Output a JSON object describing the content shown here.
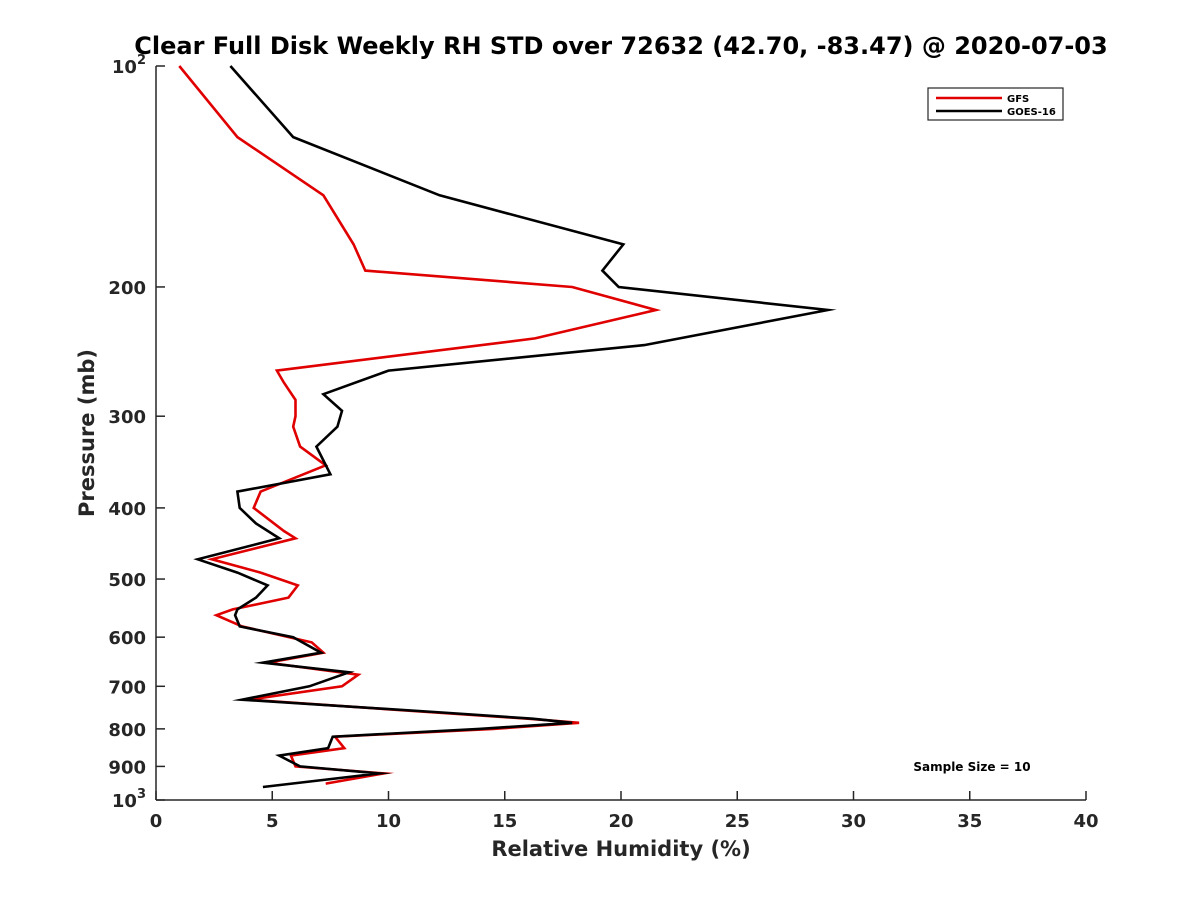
{
  "chart_data": {
    "type": "line",
    "title": "Clear Full Disk Weekly RH STD over 72632 (42.70, -83.47) @ 2020-07-03",
    "xlabel": "Relative Humidity (%)",
    "ylabel": "Pressure (mb)",
    "xlim": [
      0,
      40
    ],
    "ylim": [
      100,
      1000
    ],
    "y_scale": "log",
    "y_reversed": true,
    "grid": false,
    "legend_position": "top-right",
    "x_ticks": [
      "0",
      "5",
      "10",
      "15",
      "20",
      "25",
      "30",
      "35",
      "40"
    ],
    "y_ticks": [
      {
        "value": 100,
        "base": "10",
        "exp": "2"
      },
      {
        "value": 200,
        "label": "200"
      },
      {
        "value": 300,
        "label": "300"
      },
      {
        "value": 400,
        "label": "400"
      },
      {
        "value": 500,
        "label": "500"
      },
      {
        "value": 600,
        "label": "600"
      },
      {
        "value": 700,
        "label": "700"
      },
      {
        "value": 800,
        "label": "800"
      },
      {
        "value": 900,
        "label": "900"
      },
      {
        "value": 1000,
        "base": "10",
        "exp": "3"
      }
    ],
    "annotation": "Sample Size = 10",
    "series": [
      {
        "name": "GFS",
        "color": "#e00000",
        "points": [
          [
            1.0,
            100
          ],
          [
            3.5,
            125
          ],
          [
            7.2,
            150
          ],
          [
            8.5,
            175
          ],
          [
            9.0,
            190
          ],
          [
            17.9,
            200
          ],
          [
            21.5,
            215
          ],
          [
            16.3,
            235
          ],
          [
            5.2,
            260
          ],
          [
            5.5,
            270
          ],
          [
            6.0,
            285
          ],
          [
            6.0,
            300
          ],
          [
            5.9,
            310
          ],
          [
            6.2,
            330
          ],
          [
            7.3,
            350
          ],
          [
            4.5,
            380
          ],
          [
            4.2,
            400
          ],
          [
            5.5,
            430
          ],
          [
            6.0,
            440
          ],
          [
            2.4,
            470
          ],
          [
            4.5,
            490
          ],
          [
            6.1,
            510
          ],
          [
            5.7,
            530
          ],
          [
            3.3,
            550
          ],
          [
            2.6,
            560
          ],
          [
            3.7,
            580
          ],
          [
            6.7,
            610
          ],
          [
            7.2,
            630
          ],
          [
            4.8,
            650
          ],
          [
            8.7,
            675
          ],
          [
            8.0,
            700
          ],
          [
            4.0,
            730
          ],
          [
            12.0,
            760
          ],
          [
            16.0,
            775
          ],
          [
            18.2,
            785
          ],
          [
            14.5,
            800
          ],
          [
            7.7,
            820
          ],
          [
            8.1,
            850
          ],
          [
            5.8,
            870
          ],
          [
            6.0,
            900
          ],
          [
            9.8,
            920
          ],
          [
            7.3,
            950
          ]
        ]
      },
      {
        "name": "GOES-16",
        "color": "#000000",
        "points": [
          [
            3.2,
            100
          ],
          [
            5.9,
            125
          ],
          [
            12.2,
            150
          ],
          [
            20.1,
            175
          ],
          [
            19.2,
            190
          ],
          [
            19.9,
            200
          ],
          [
            28.9,
            215
          ],
          [
            21.0,
            240
          ],
          [
            10.0,
            260
          ],
          [
            7.2,
            280
          ],
          [
            8.0,
            295
          ],
          [
            7.8,
            310
          ],
          [
            6.9,
            330
          ],
          [
            7.5,
            360
          ],
          [
            3.5,
            380
          ],
          [
            3.6,
            400
          ],
          [
            4.3,
            420
          ],
          [
            5.3,
            440
          ],
          [
            1.8,
            470
          ],
          [
            3.5,
            490
          ],
          [
            4.8,
            510
          ],
          [
            4.3,
            530
          ],
          [
            3.5,
            550
          ],
          [
            3.4,
            560
          ],
          [
            3.6,
            580
          ],
          [
            5.9,
            600
          ],
          [
            7.1,
            630
          ],
          [
            4.6,
            650
          ],
          [
            8.3,
            670
          ],
          [
            6.6,
            700
          ],
          [
            3.7,
            730
          ],
          [
            12.3,
            760
          ],
          [
            16.2,
            775
          ],
          [
            17.9,
            785
          ],
          [
            13.9,
            800
          ],
          [
            7.6,
            820
          ],
          [
            7.4,
            850
          ],
          [
            5.3,
            870
          ],
          [
            6.2,
            900
          ],
          [
            9.6,
            920
          ],
          [
            4.6,
            960
          ]
        ]
      }
    ]
  }
}
